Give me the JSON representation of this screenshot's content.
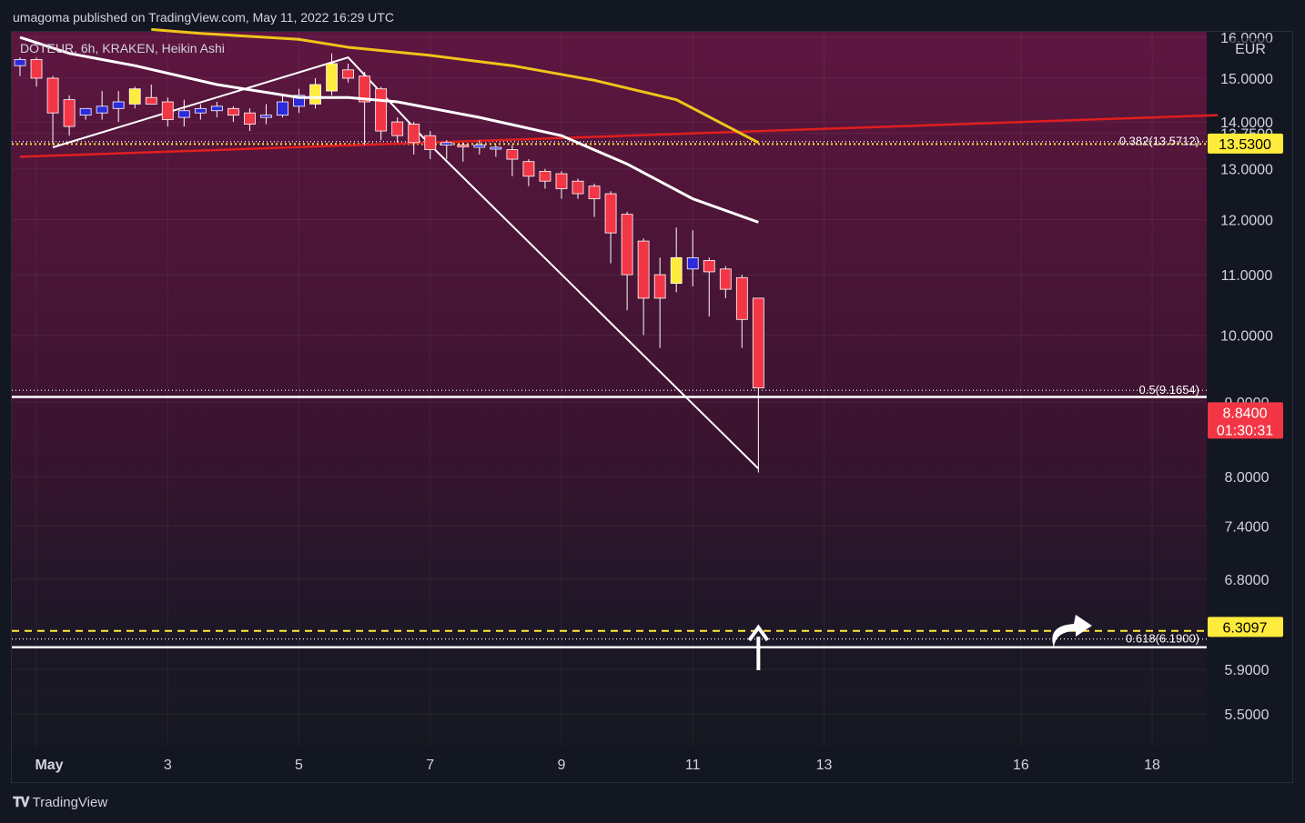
{
  "header": {
    "publisher": "umagoma published on TradingView.com, May 11, 2022 16:29 UTC"
  },
  "footer": {
    "brand": "TradingView"
  },
  "chart_data": {
    "type": "candlestick",
    "legend": "DOTEUR, 6h, KRAKEN, Heikin Ashi",
    "currency": "EUR",
    "ylim": [
      5.2,
      16.2
    ],
    "y_scale": "log",
    "y_ticks": [
      "16.0000",
      "15.0000",
      "14.0000",
      "13.7500",
      "13.0000",
      "12.0000",
      "11.0000",
      "10.0000",
      "9.0000",
      "8.0000",
      "7.4000",
      "6.8000",
      "5.9000",
      "5.5000"
    ],
    "y_tick_values": [
      16.0,
      15.0,
      14.0,
      13.75,
      13.0,
      12.0,
      11.0,
      10.0,
      9.0,
      8.0,
      7.4,
      6.8,
      5.9,
      5.5
    ],
    "x_ticks": [
      {
        "label": "May",
        "i": 1
      },
      {
        "label": "3",
        "i": 9
      },
      {
        "label": "5",
        "i": 17
      },
      {
        "label": "7",
        "i": 25
      },
      {
        "label": "9",
        "i": 33
      },
      {
        "label": "11",
        "i": 41
      },
      {
        "label": "13",
        "i": 49
      },
      {
        "label": "16",
        "i": 61
      },
      {
        "label": "18",
        "i": 69
      }
    ],
    "candles": [
      {
        "o": 15.3,
        "h": 15.5,
        "l": 15.05,
        "c": 15.45
      },
      {
        "o": 15.45,
        "h": 15.5,
        "l": 14.8,
        "c": 15.0
      },
      {
        "o": 15.0,
        "h": 15.05,
        "l": 13.5,
        "c": 14.2
      },
      {
        "o": 14.5,
        "h": 14.6,
        "l": 13.7,
        "c": 13.9
      },
      {
        "o": 14.15,
        "h": 14.3,
        "l": 14.05,
        "c": 14.3
      },
      {
        "o": 14.2,
        "h": 14.7,
        "l": 14.05,
        "c": 14.35
      },
      {
        "o": 14.3,
        "h": 14.7,
        "l": 14.0,
        "c": 14.45
      },
      {
        "o": 14.4,
        "h": 14.8,
        "l": 14.3,
        "c": 14.75
      },
      {
        "o": 14.55,
        "h": 14.85,
        "l": 14.4,
        "c": 14.4
      },
      {
        "o": 14.45,
        "h": 14.55,
        "l": 13.9,
        "c": 14.05
      },
      {
        "o": 14.1,
        "h": 14.5,
        "l": 13.9,
        "c": 14.25
      },
      {
        "o": 14.2,
        "h": 14.4,
        "l": 14.05,
        "c": 14.3
      },
      {
        "o": 14.25,
        "h": 14.45,
        "l": 14.1,
        "c": 14.35
      },
      {
        "o": 14.3,
        "h": 14.35,
        "l": 14.0,
        "c": 14.15
      },
      {
        "o": 14.2,
        "h": 14.3,
        "l": 13.8,
        "c": 13.95
      },
      {
        "o": 14.1,
        "h": 14.4,
        "l": 13.95,
        "c": 14.15
      },
      {
        "o": 14.15,
        "h": 14.6,
        "l": 14.1,
        "c": 14.45
      },
      {
        "o": 14.35,
        "h": 14.75,
        "l": 14.2,
        "c": 14.6
      },
      {
        "o": 14.4,
        "h": 15.0,
        "l": 14.3,
        "c": 14.85
      },
      {
        "o": 14.7,
        "h": 15.6,
        "l": 14.6,
        "c": 15.35
      },
      {
        "o": 15.2,
        "h": 15.35,
        "l": 14.9,
        "c": 15.0
      },
      {
        "o": 15.05,
        "h": 15.15,
        "l": 13.5,
        "c": 14.45
      },
      {
        "o": 14.75,
        "h": 14.8,
        "l": 13.6,
        "c": 13.8
      },
      {
        "o": 14.0,
        "h": 14.1,
        "l": 13.55,
        "c": 13.7
      },
      {
        "o": 13.95,
        "h": 14.0,
        "l": 13.3,
        "c": 13.55
      },
      {
        "o": 13.7,
        "h": 13.8,
        "l": 13.2,
        "c": 13.4
      },
      {
        "o": 13.5,
        "h": 13.6,
        "l": 13.2,
        "c": 13.55
      },
      {
        "o": 13.5,
        "h": 13.55,
        "l": 13.15,
        "c": 13.48
      },
      {
        "o": 13.45,
        "h": 13.6,
        "l": 13.3,
        "c": 13.5
      },
      {
        "o": 13.45,
        "h": 13.5,
        "l": 13.25,
        "c": 13.45
      },
      {
        "o": 13.4,
        "h": 13.5,
        "l": 12.85,
        "c": 13.2
      },
      {
        "o": 13.15,
        "h": 13.2,
        "l": 12.65,
        "c": 12.85
      },
      {
        "o": 12.95,
        "h": 13.0,
        "l": 12.6,
        "c": 12.75
      },
      {
        "o": 12.9,
        "h": 12.95,
        "l": 12.4,
        "c": 12.6
      },
      {
        "o": 12.75,
        "h": 12.8,
        "l": 12.4,
        "c": 12.5
      },
      {
        "o": 12.65,
        "h": 12.7,
        "l": 12.05,
        "c": 12.4
      },
      {
        "o": 12.5,
        "h": 12.55,
        "l": 11.2,
        "c": 11.75
      },
      {
        "o": 12.1,
        "h": 12.15,
        "l": 10.4,
        "c": 11.0
      },
      {
        "o": 11.6,
        "h": 11.65,
        "l": 10.0,
        "c": 10.6
      },
      {
        "o": 11.0,
        "h": 11.3,
        "l": 9.8,
        "c": 10.6
      },
      {
        "o": 10.85,
        "h": 11.85,
        "l": 10.7,
        "c": 11.3
      },
      {
        "o": 11.1,
        "h": 11.8,
        "l": 10.8,
        "c": 11.3
      },
      {
        "o": 11.25,
        "h": 11.3,
        "l": 10.3,
        "c": 11.05
      },
      {
        "o": 11.1,
        "h": 11.15,
        "l": 10.6,
        "c": 10.75
      },
      {
        "o": 10.95,
        "h": 11.0,
        "l": 9.8,
        "c": 10.25
      },
      {
        "o": 10.6,
        "h": 10.6,
        "l": 8.05,
        "c": 9.2
      }
    ],
    "ma_yellow": [
      16.2,
      16.1,
      15.95,
      15.75,
      15.55,
      15.3,
      14.95,
      14.5,
      13.55
    ],
    "ma_yellow_i": [
      8,
      11,
      17,
      20,
      25,
      30,
      35,
      40,
      45
    ],
    "ma_white": [
      16.0,
      15.6,
      15.3,
      14.85,
      14.55,
      14.55,
      14.45,
      14.1,
      13.7,
      13.1,
      12.4,
      11.95
    ],
    "ma_white_i": [
      0,
      3,
      7,
      12,
      17,
      20,
      23,
      28,
      33,
      37,
      41,
      45
    ],
    "trendline_red": {
      "p1": [
        0,
        13.25
      ],
      "p2": [
        73,
        14.15
      ]
    },
    "drawing_white": [
      [
        2,
        13.45
      ],
      [
        20,
        15.5
      ],
      [
        25,
        13.5
      ],
      [
        45,
        8.1
      ]
    ],
    "fib_levels": [
      {
        "label": "0.382(13.5712)",
        "value": 13.5712
      },
      {
        "label": "0.5(9.1654)",
        "value": 9.1654
      },
      {
        "label": "0.618(6.1900)",
        "value": 6.19
      }
    ],
    "hlines_white": [
      9.07,
      6.11
    ],
    "hline_yellow_dotted": 13.52,
    "hline_yellow_dashed": 6.27,
    "price_labels": [
      {
        "text": "13.5300",
        "value": 13.53,
        "bg": "#ffeb3b",
        "fg": "#000000"
      },
      {
        "text": "8.8400",
        "sub": "01:30:31",
        "value": 8.84,
        "bg": "#f23645",
        "fg": "#ffffff"
      },
      {
        "text": "6.3097",
        "value": 6.3097,
        "bg": "#ffeb3b",
        "fg": "#000000"
      }
    ],
    "colors": {
      "up": "#2b2bdc",
      "down": "#f23645",
      "doji": "#ffeb3b",
      "ma_yellow": "#f0c419",
      "ma_white": "#ffffff",
      "trend_red": "#e01e1e"
    }
  }
}
